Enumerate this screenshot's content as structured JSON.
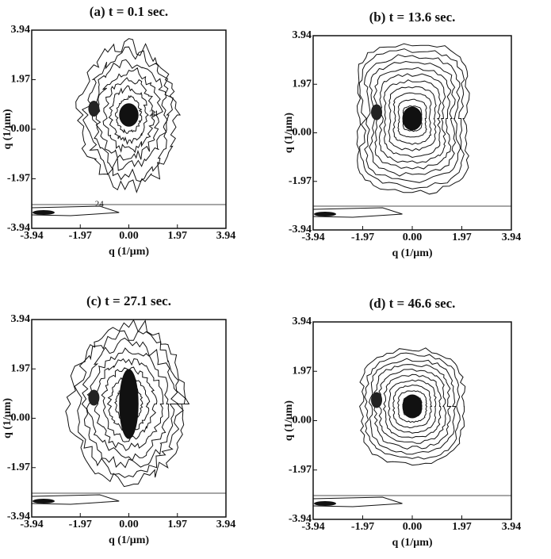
{
  "chart_data": [
    {
      "type": "contour",
      "title": "(a) t = 0.1 sec.",
      "xlabel": "q (1/μm)",
      "ylabel": "q (1/μm)",
      "xlim": [
        -3.94,
        3.94
      ],
      "ylim": [
        -3.94,
        3.94
      ],
      "xticks": [
        -3.94,
        -1.97,
        {
          "value": 0,
          "label": "0.00"
        },
        1.97,
        3.94
      ],
      "yticks": [
        -3.94,
        -1.97,
        {
          "value": 0,
          "label": "0.00"
        },
        1.97,
        3.94
      ],
      "annotations": [
        "24",
        "24"
      ]
    },
    {
      "type": "contour",
      "title": "(b) t = 13.6 sec.",
      "xlabel": "q (1/μm)",
      "ylabel": "q (1/μm)",
      "xlim": [
        -3.94,
        3.94
      ],
      "ylim": [
        -3.94,
        3.94
      ],
      "xticks": [
        -3.94,
        -1.97,
        {
          "value": 0,
          "label": "0.00"
        },
        1.97,
        3.94
      ],
      "yticks": [
        -3.94,
        -1.97,
        {
          "value": 0,
          "label": "0.00"
        },
        1.97,
        3.94
      ]
    },
    {
      "type": "contour",
      "title": "(c) t = 27.1 sec.",
      "xlabel": "q (1/μm)",
      "ylabel": "q (1/μm)",
      "xlim": [
        -3.94,
        3.94
      ],
      "ylim": [
        -3.94,
        3.94
      ],
      "xticks": [
        -3.94,
        -1.97,
        {
          "value": 0,
          "label": "0.00"
        },
        1.97,
        3.94
      ],
      "yticks": [
        -3.94,
        -1.97,
        {
          "value": 0,
          "label": "0.00"
        },
        1.97,
        3.94
      ]
    },
    {
      "type": "contour",
      "title": "(d) t = 46.6 sec.",
      "xlabel": "q (1/μm)",
      "ylabel": "q (1/μm)",
      "xlim": [
        -3.94,
        3.94
      ],
      "ylim": [
        -3.94,
        3.94
      ],
      "xticks": [
        -3.94,
        -1.97,
        {
          "value": 0,
          "label": "0.00"
        },
        1.97,
        3.94
      ],
      "yticks": [
        -3.94,
        -1.97,
        {
          "value": 0,
          "label": "0.00"
        },
        1.97,
        3.94
      ]
    }
  ]
}
